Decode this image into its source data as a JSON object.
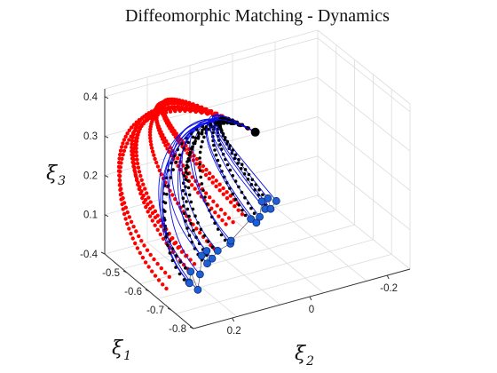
{
  "chart_data": {
    "type": "line",
    "title": "Diffeomorphic Matching - Dynamics",
    "xlabel": "ξ",
    "xlabel_sub": "1",
    "ylabel": "ξ",
    "ylabel_sub": "2",
    "zlabel": "ξ",
    "zlabel_sub": "3",
    "x_ticks": [
      "-0.4",
      "-0.5",
      "-0.6",
      "-0.7",
      "-0.8"
    ],
    "y_ticks": [
      "0.2",
      "0",
      "-0.2"
    ],
    "z_ticks": [
      "0.1",
      "0.2",
      "0.3",
      "0.4"
    ],
    "xlim": [
      -0.8,
      -0.4
    ],
    "ylim": [
      -0.25,
      0.3
    ],
    "zlim": [
      0.0,
      0.42
    ],
    "grid": true,
    "legend": "none",
    "attractor": [
      -0.52,
      -0.02,
      0.28
    ],
    "series_colors": {
      "reproductions": "#0a10e6",
      "demonstrations": "#000000",
      "reference": "#ff0000",
      "start_points": "#1f5fd6"
    },
    "start_points": [
      [
        -0.53,
        0.05,
        0.02
      ],
      [
        -0.55,
        0.06,
        0.04
      ],
      [
        -0.57,
        0.12,
        0.02
      ],
      [
        -0.58,
        0.14,
        0.05
      ],
      [
        -0.6,
        0.15,
        0.03
      ],
      [
        -0.62,
        0.18,
        0.02
      ],
      [
        -0.63,
        0.21,
        0.04
      ],
      [
        -0.64,
        0.22,
        0.02
      ],
      [
        -0.66,
        0.23,
        0.03
      ],
      [
        -0.68,
        0.22,
        0.02
      ],
      [
        -0.5,
        -0.02,
        0.05
      ],
      [
        -0.49,
        -0.04,
        0.03
      ],
      [
        -0.47,
        -0.06,
        0.03
      ],
      [
        -0.46,
        -0.08,
        0.04
      ],
      [
        -0.45,
        -0.1,
        0.03
      ],
      [
        -0.44,
        -0.12,
        0.04
      ],
      [
        -0.42,
        -0.11,
        0.04
      ],
      [
        -0.41,
        -0.1,
        0.03
      ],
      [
        -0.56,
        0.1,
        0.03
      ],
      [
        -0.61,
        0.17,
        0.06
      ]
    ],
    "curve_bulge": [
      0.14,
      0.2,
      0.18,
      0.25,
      0.16,
      0.22,
      0.28,
      0.2,
      0.24,
      0.3,
      0.1,
      0.12,
      0.08,
      0.15,
      0.1,
      0.12,
      0.1,
      0.08,
      0.2,
      0.26
    ],
    "reference_bulge": [
      0.32,
      0.38,
      0.35,
      0.42,
      0.36,
      0.3,
      0.4,
      0.34,
      0.29,
      0.37
    ]
  }
}
